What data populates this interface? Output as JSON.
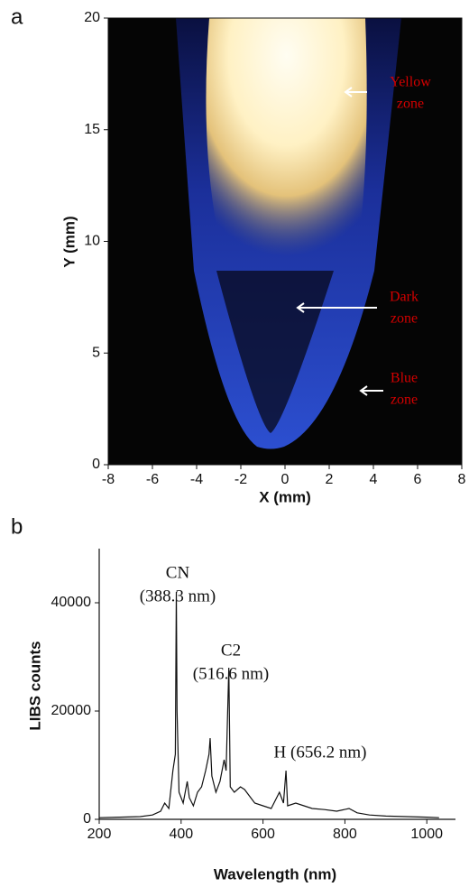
{
  "chart_data": [
    {
      "type": "image",
      "panel": "a",
      "xlabel": "X (mm)",
      "ylabel": "Y (mm)",
      "xlim": [
        -8,
        8
      ],
      "xticks": [
        -8,
        -6,
        -4,
        -2,
        0,
        2,
        4,
        6,
        8
      ],
      "ylim": [
        0,
        20
      ],
      "yticks": [
        0,
        5,
        10,
        15,
        20
      ],
      "annotations": [
        [
          "Yellow",
          "zone"
        ],
        [
          "Dark",
          "zone"
        ],
        [
          "Blue",
          "zone"
        ]
      ]
    },
    {
      "type": "line",
      "panel": "b",
      "xlabel": "Wavelength (nm)",
      "ylabel": "LIBS counts",
      "color": "#111111",
      "xlim": [
        200,
        1070
      ],
      "xticks": [
        200,
        400,
        600,
        800,
        1000
      ],
      "ylim": [
        0,
        50000
      ],
      "yticks": [
        0,
        20000,
        40000
      ],
      "annotations": [
        [
          "CN",
          "(388.3 nm)"
        ],
        [
          "C2",
          "(516.6 nm)"
        ],
        [
          "H (656.2 nm)"
        ]
      ],
      "x": [
        200,
        250,
        300,
        330,
        350,
        360,
        370,
        380,
        386,
        388.3,
        390,
        395,
        405,
        415,
        420,
        430,
        440,
        450,
        460,
        468,
        471,
        475,
        485,
        495,
        505,
        510,
        516.6,
        520,
        530,
        545,
        555,
        565,
        580,
        600,
        620,
        640,
        650,
        656.2,
        660,
        680,
        700,
        720,
        750,
        780,
        810,
        830,
        860,
        900,
        950,
        1000,
        1030
      ],
      "values": [
        300,
        400,
        500,
        800,
        1500,
        3000,
        2000,
        9000,
        12000,
        42000,
        20000,
        5000,
        3000,
        7000,
        4000,
        2500,
        5000,
        6000,
        9000,
        12000,
        15000,
        8000,
        5000,
        7000,
        11000,
        9000,
        28000,
        6000,
        5000,
        6000,
        5500,
        4500,
        3000,
        2500,
        2000,
        5000,
        3000,
        9000,
        2500,
        3000,
        2500,
        2000,
        1800,
        1500,
        2000,
        1200,
        800,
        600,
        500,
        400,
        300
      ]
    }
  ]
}
